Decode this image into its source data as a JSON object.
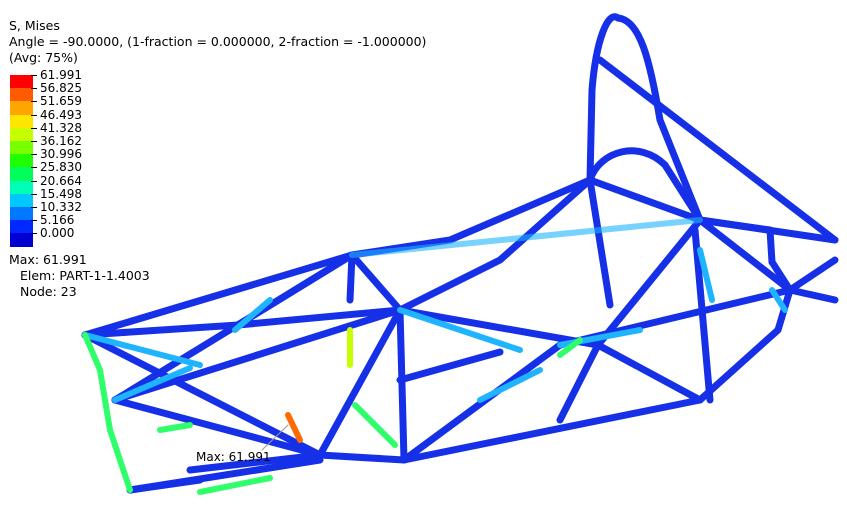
{
  "header": {
    "variable": "S, Mises",
    "angle": "Angle = -90.0000, (1-fraction = 0.000000, 2-fraction = -1.000000)",
    "avg": "(Avg: 75%)"
  },
  "legend": {
    "values": [
      "61.991",
      "56.825",
      "51.659",
      "46.493",
      "41.328",
      "36.162",
      "30.996",
      "25.830",
      "20.664",
      "15.498",
      "10.332",
      "5.166",
      "0.000"
    ],
    "colors": [
      "#ff0000",
      "#ff5a00",
      "#ffa500",
      "#ffe600",
      "#c8ff00",
      "#78ff00",
      "#1eff00",
      "#00ff5a",
      "#00ffb4",
      "#00c8ff",
      "#0078ff",
      "#0028ff",
      "#0000d0"
    ]
  },
  "extrema": {
    "max": "Max: 61.991",
    "elem": "Elem: PART-1-1.4003",
    "node": "Node: 23"
  },
  "callout": {
    "label": "Max: 61.991"
  },
  "model": {
    "frame_color": "#1a3ee0",
    "accent_colors": [
      "#1ec8ff",
      "#2eff6a",
      "#ff3a00"
    ]
  }
}
